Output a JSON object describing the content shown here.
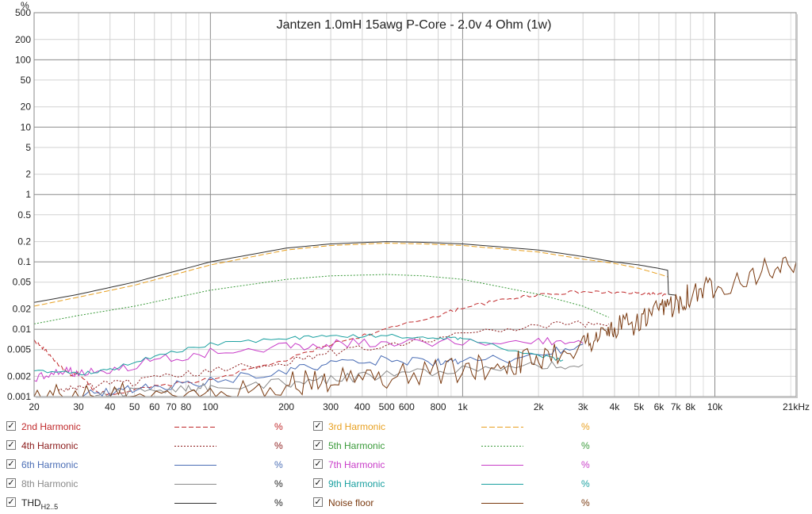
{
  "chart_data": {
    "type": "line",
    "title": "Jantzen 1.0mH 15awg P-Core - 2.0v 4 Ohm (1w)",
    "ylabel": "%",
    "xscale": "log",
    "yscale": "log",
    "xlim": [
      20,
      21000
    ],
    "ylim": [
      0.001,
      500
    ],
    "grid": true,
    "x_ticks": [
      20,
      30,
      40,
      50,
      60,
      70,
      80,
      100,
      200,
      300,
      400,
      500,
      600,
      800,
      1000,
      2000,
      3000,
      4000,
      5000,
      6000,
      7000,
      8000,
      10000,
      21000
    ],
    "x_tick_labels": [
      "20",
      "30",
      "40",
      "50",
      "60",
      "70",
      "80",
      "100",
      "200",
      "300",
      "400",
      "500",
      "600",
      "800",
      "1k",
      "2k",
      "3k",
      "4k",
      "5k",
      "6k",
      "7k",
      "8k",
      "10k",
      "21kHz"
    ],
    "y_ticks": [
      500,
      200,
      100,
      50,
      20,
      10,
      5,
      2,
      1,
      0.5,
      0.2,
      0.1,
      0.05,
      0.02,
      0.01,
      0.005,
      0.002,
      0.001
    ],
    "y_tick_labels": [
      "500",
      "200",
      "100",
      "50",
      "20",
      "10",
      "5",
      "2",
      "1",
      "0.5",
      "0.2",
      "0.1",
      "0.05",
      "0.02",
      "0.01",
      "0.005",
      "0.002",
      "0.001"
    ],
    "series": [
      {
        "name": "2nd Harmonic",
        "color": "#c0282a",
        "dash": "6,3",
        "x": [
          20,
          22,
          25,
          28,
          30,
          35,
          40,
          60,
          100,
          200,
          300,
          500,
          800,
          1000,
          1500,
          2000,
          3000,
          4000,
          5000,
          6000,
          6500
        ],
        "y": [
          0.0068,
          0.005,
          0.003,
          0.002,
          0.0022,
          0.0012,
          0.0011,
          0.0014,
          0.0018,
          0.0035,
          0.006,
          0.01,
          0.016,
          0.021,
          0.028,
          0.033,
          0.036,
          0.035,
          0.034,
          0.033,
          0.032
        ]
      },
      {
        "name": "3rd Harmonic",
        "color": "#e8a020",
        "dash": "7,3",
        "x": [
          20,
          30,
          50,
          100,
          200,
          300,
          500,
          700,
          1000,
          2000,
          3000,
          4000,
          5000,
          6000,
          6500
        ],
        "y": [
          0.022,
          0.03,
          0.045,
          0.09,
          0.15,
          0.175,
          0.19,
          0.185,
          0.175,
          0.14,
          0.11,
          0.095,
          0.08,
          0.066,
          0.06
        ]
      },
      {
        "name": "4th Harmonic",
        "color": "#8b1a1a",
        "dash": "2,2",
        "x": [
          25,
          30,
          40,
          60,
          100,
          200,
          300,
          500,
          1000,
          2000,
          3000,
          3800
        ],
        "y": [
          0.0012,
          0.0014,
          0.0015,
          0.0018,
          0.0024,
          0.0033,
          0.0045,
          0.006,
          0.0085,
          0.011,
          0.012,
          0.012
        ]
      },
      {
        "name": "5th Harmonic",
        "color": "#3a9a3a",
        "dash": "2,2",
        "x": [
          20,
          30,
          50,
          100,
          200,
          300,
          500,
          700,
          1000,
          2000,
          3000,
          3800
        ],
        "y": [
          0.012,
          0.016,
          0.022,
          0.038,
          0.055,
          0.062,
          0.065,
          0.062,
          0.055,
          0.033,
          0.022,
          0.015
        ]
      },
      {
        "name": "6th Harmonic",
        "color": "#4a6db5",
        "dash": "",
        "x": [
          28,
          40,
          60,
          100,
          200,
          300,
          500,
          800,
          1000,
          2000,
          3000
        ],
        "y": [
          0.001,
          0.0012,
          0.0014,
          0.0017,
          0.0024,
          0.003,
          0.0035,
          0.0033,
          0.0032,
          0.004,
          0.006
        ]
      },
      {
        "name": "7th Harmonic",
        "color": "#c83cc8",
        "dash": "",
        "x": [
          20,
          25,
          30,
          40,
          60,
          100,
          200,
          300,
          500,
          1000,
          2000,
          3000
        ],
        "y": [
          0.0018,
          0.0025,
          0.0023,
          0.0024,
          0.0035,
          0.0045,
          0.0055,
          0.006,
          0.0065,
          0.0065,
          0.0065,
          0.0062
        ]
      },
      {
        "name": "8th Harmonic",
        "color": "#8a8a8a",
        "dash": "",
        "x": [
          35,
          50,
          80,
          100,
          200,
          300,
          500,
          1000,
          2000,
          3000
        ],
        "y": [
          0.0011,
          0.0012,
          0.0013,
          0.0014,
          0.0016,
          0.0018,
          0.0021,
          0.0025,
          0.0028,
          0.003
        ]
      },
      {
        "name": "9th Harmonic",
        "color": "#1aa0a0",
        "dash": "",
        "x": [
          20,
          30,
          40,
          60,
          100,
          200,
          300,
          500,
          800,
          1000,
          2000,
          2500
        ],
        "y": [
          0.0025,
          0.0022,
          0.0025,
          0.004,
          0.006,
          0.0072,
          0.0078,
          0.008,
          0.0075,
          0.0072,
          0.004,
          0.0035
        ]
      },
      {
        "name": "THD",
        "color": "#333333",
        "dash": "",
        "x": [
          20,
          30,
          50,
          100,
          200,
          300,
          500,
          700,
          1000,
          2000,
          3000,
          4000,
          5000,
          6000,
          6500,
          6550,
          7000
        ],
        "y": [
          0.025,
          0.033,
          0.05,
          0.1,
          0.16,
          0.185,
          0.2,
          0.195,
          0.185,
          0.15,
          0.12,
          0.1,
          0.09,
          0.08,
          0.075,
          0.033,
          0.032
        ]
      },
      {
        "name": "Noise floor",
        "color": "#7a3a10",
        "dash": "",
        "x": [
          20,
          30,
          50,
          100,
          200,
          300,
          500,
          1000,
          1500,
          2000,
          3000,
          3500,
          4000,
          5000,
          6000,
          7000,
          8000,
          10000,
          15000,
          21000
        ],
        "y": [
          0.001,
          0.001,
          0.0011,
          0.0012,
          0.0015,
          0.0018,
          0.002,
          0.0025,
          0.003,
          0.0038,
          0.006,
          0.008,
          0.01,
          0.013,
          0.018,
          0.025,
          0.033,
          0.045,
          0.07,
          0.1
        ]
      }
    ]
  },
  "legend": {
    "unit": "%",
    "items": [
      {
        "name": "2nd Harmonic",
        "sub": "",
        "checked": "✓",
        "color": "#c0282a",
        "dash": "6,3"
      },
      {
        "name": "3rd Harmonic",
        "sub": "",
        "checked": "✓",
        "color": "#e8a020",
        "dash": "7,3"
      },
      {
        "name": "4th Harmonic",
        "sub": "",
        "checked": "✓",
        "color": "#8b1a1a",
        "dash": "2,2"
      },
      {
        "name": "5th Harmonic",
        "sub": "",
        "checked": "✓",
        "color": "#3a9a3a",
        "dash": "2,2"
      },
      {
        "name": "6th Harmonic",
        "sub": "",
        "checked": "✓",
        "color": "#4a6db5",
        "dash": ""
      },
      {
        "name": "7th Harmonic",
        "sub": "",
        "checked": "✓",
        "color": "#c83cc8",
        "dash": ""
      },
      {
        "name": "8th Harmonic",
        "sub": "",
        "checked": "✓",
        "color": "#8a8a8a",
        "dash": ""
      },
      {
        "name": "9th Harmonic",
        "sub": "",
        "checked": "✓",
        "color": "#1aa0a0",
        "dash": ""
      },
      {
        "name": "THD",
        "sub": "H2..5",
        "checked": "✓",
        "color": "#333333",
        "dash": ""
      },
      {
        "name": "Noise floor",
        "sub": "",
        "checked": "✓",
        "color": "#7a3a10",
        "dash": ""
      }
    ]
  }
}
